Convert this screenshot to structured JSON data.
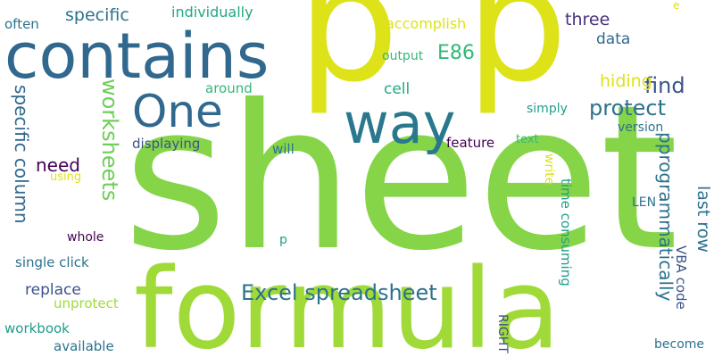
{
  "palette": {
    "lime": "#a0da39",
    "yellow": "#dde318",
    "green": "#86d549",
    "teal": "#2a788e",
    "dark_teal": "#2c728e",
    "blue": "#31688e",
    "navy": "#3b528b",
    "indigo": "#46327e",
    "purple": "#440154",
    "sea": "#1f9e89",
    "mint": "#35b779",
    "aqua": "#22a884",
    "green2": "#6ece58"
  },
  "words": {
    "sheet": "sheet",
    "formula": "formula",
    "p1": "p",
    "p2": "p",
    "contains": "contains",
    "way": "way",
    "one": "One",
    "excel_spreadsheet": "Excel spreadsheet",
    "worksheets": "worksheets",
    "specific_column": "specific column",
    "need": "need",
    "protect": "protect",
    "find": "find",
    "e86": "E86",
    "pprogrammatically": "pprogrammatically",
    "last_row": "last row",
    "specific": "specific",
    "individually": "individually",
    "accomplish": "accomplish",
    "three": "three",
    "data": "data",
    "hiding": "hiding",
    "often": "often",
    "output": "output",
    "cell": "cell",
    "around": "around",
    "simply": "simply",
    "version": "version",
    "feature": "feature",
    "text": "text",
    "displaying": "displaying",
    "will": "will",
    "write": "write",
    "time_consuming": "time consuming",
    "vba_code": "VBA code",
    "len": "LEN",
    "using": "using",
    "whole": "whole",
    "single_click": "single click",
    "replace": "replace",
    "unprotect": "unprotect",
    "workbook": "workbook",
    "available": "available",
    "right": "RIGHT",
    "become": "become",
    "p3": "p",
    "e": "e"
  }
}
